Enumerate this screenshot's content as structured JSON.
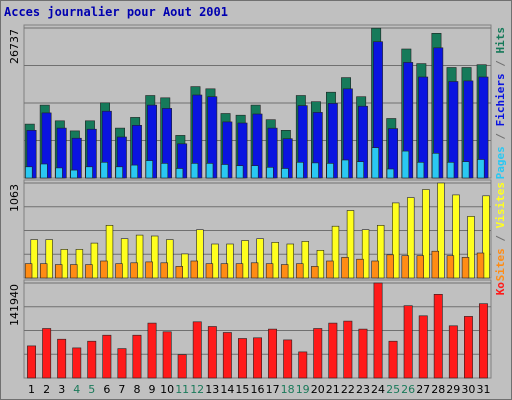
{
  "title": "Acces journalier pour Aout 2001",
  "colors": {
    "background": "#c0c0c0",
    "title": "#0000b0",
    "hits": "#167a5a",
    "files": "#0a14e0",
    "pages": "#2ac8f2",
    "visits": "#ffff1e",
    "sites": "#ff8c14",
    "kbytes": "#ff1a1a",
    "grid": "#707070",
    "weekday_label": "#000000",
    "weekend_label": "#1a7a5a"
  },
  "chart_data": [
    {
      "type": "bar",
      "panel": "top",
      "axis_max_label": "26737",
      "ylim": [
        0,
        26737
      ],
      "side_labels": [
        {
          "text": "Pages",
          "color": "#2ac8f2"
        },
        {
          "text": " / ",
          "color": "#707070"
        },
        {
          "text": "Fichiers",
          "color": "#0a14e0"
        },
        {
          "text": " / ",
          "color": "#707070"
        },
        {
          "text": "Hits",
          "color": "#167a5a"
        }
      ],
      "series": [
        {
          "name": "Hits",
          "color": "#167a5a",
          "values": [
            9600,
            13000,
            10200,
            8400,
            10200,
            13400,
            8900,
            10800,
            14700,
            14300,
            7600,
            16300,
            15900,
            11500,
            11200,
            13000,
            10400,
            8500,
            14700,
            13600,
            15300,
            17900,
            14500,
            26700,
            10600,
            23000,
            20400,
            25800,
            19700,
            19700,
            20200
          ]
        },
        {
          "name": "Fichiers",
          "color": "#0a14e0",
          "values": [
            8500,
            11600,
            8900,
            7100,
            8700,
            11900,
            7300,
            9400,
            13000,
            12400,
            6100,
            14800,
            14500,
            10000,
            9800,
            11400,
            8900,
            7000,
            12900,
            11700,
            13300,
            15900,
            12800,
            24300,
            8800,
            20600,
            18000,
            23200,
            17200,
            17300,
            18000
          ]
        },
        {
          "name": "Pages",
          "color": "#2ac8f2",
          "values": [
            2000,
            2500,
            1800,
            1400,
            2000,
            2800,
            2000,
            2300,
            3100,
            2600,
            1700,
            2600,
            2600,
            2400,
            2200,
            2200,
            1900,
            1700,
            2800,
            2700,
            2600,
            3200,
            2900,
            5400,
            1600,
            4800,
            2800,
            4400,
            2800,
            2900,
            3300
          ]
        }
      ]
    },
    {
      "type": "bar",
      "panel": "middle",
      "axis_max_label": "1063",
      "ylim": [
        0,
        1063
      ],
      "side_labels": [
        {
          "text": "Sites",
          "color": "#ff8c14"
        },
        {
          "text": " / ",
          "color": "#707070"
        },
        {
          "text": "Visites",
          "color": "#ffff1e"
        }
      ],
      "series": [
        {
          "name": "Visites",
          "color": "#ffff1e",
          "values": [
            430,
            430,
            320,
            320,
            390,
            590,
            440,
            480,
            470,
            430,
            270,
            540,
            380,
            380,
            420,
            440,
            400,
            380,
            410,
            310,
            580,
            755,
            540,
            590,
            840,
            900,
            990,
            1063,
            930,
            690,
            920
          ]
        },
        {
          "name": "Sites",
          "color": "#ff8c14",
          "values": [
            160,
            160,
            150,
            150,
            150,
            190,
            160,
            170,
            180,
            170,
            130,
            190,
            160,
            160,
            160,
            170,
            160,
            150,
            160,
            130,
            190,
            230,
            210,
            190,
            260,
            250,
            250,
            300,
            250,
            230,
            280
          ]
        }
      ]
    },
    {
      "type": "bar",
      "panel": "bottom",
      "axis_max_label": "141940",
      "ylim": [
        0,
        141940
      ],
      "side_labels": [
        {
          "text": "Ko",
          "color": "#ff1a1a"
        }
      ],
      "series": [
        {
          "name": "Ko",
          "color": "#ff1a1a",
          "values": [
            48000,
            74000,
            58000,
            45000,
            55000,
            64000,
            44000,
            64000,
            82000,
            69000,
            35000,
            84000,
            77000,
            68000,
            59000,
            60000,
            73000,
            57000,
            39000,
            74000,
            82000,
            85000,
            73000,
            141940,
            55000,
            108000,
            93000,
            125000,
            78000,
            92000,
            111000
          ]
        }
      ]
    }
  ],
  "days": [
    "1",
    "2",
    "3",
    "4",
    "5",
    "6",
    "7",
    "8",
    "9",
    "10",
    "11",
    "12",
    "13",
    "14",
    "15",
    "16",
    "17",
    "18",
    "19",
    "20",
    "21",
    "22",
    "23",
    "24",
    "25",
    "26",
    "27",
    "28",
    "29",
    "30",
    "31"
  ],
  "weekend_days": [
    4,
    5,
    11,
    12,
    18,
    19,
    25,
    26
  ]
}
